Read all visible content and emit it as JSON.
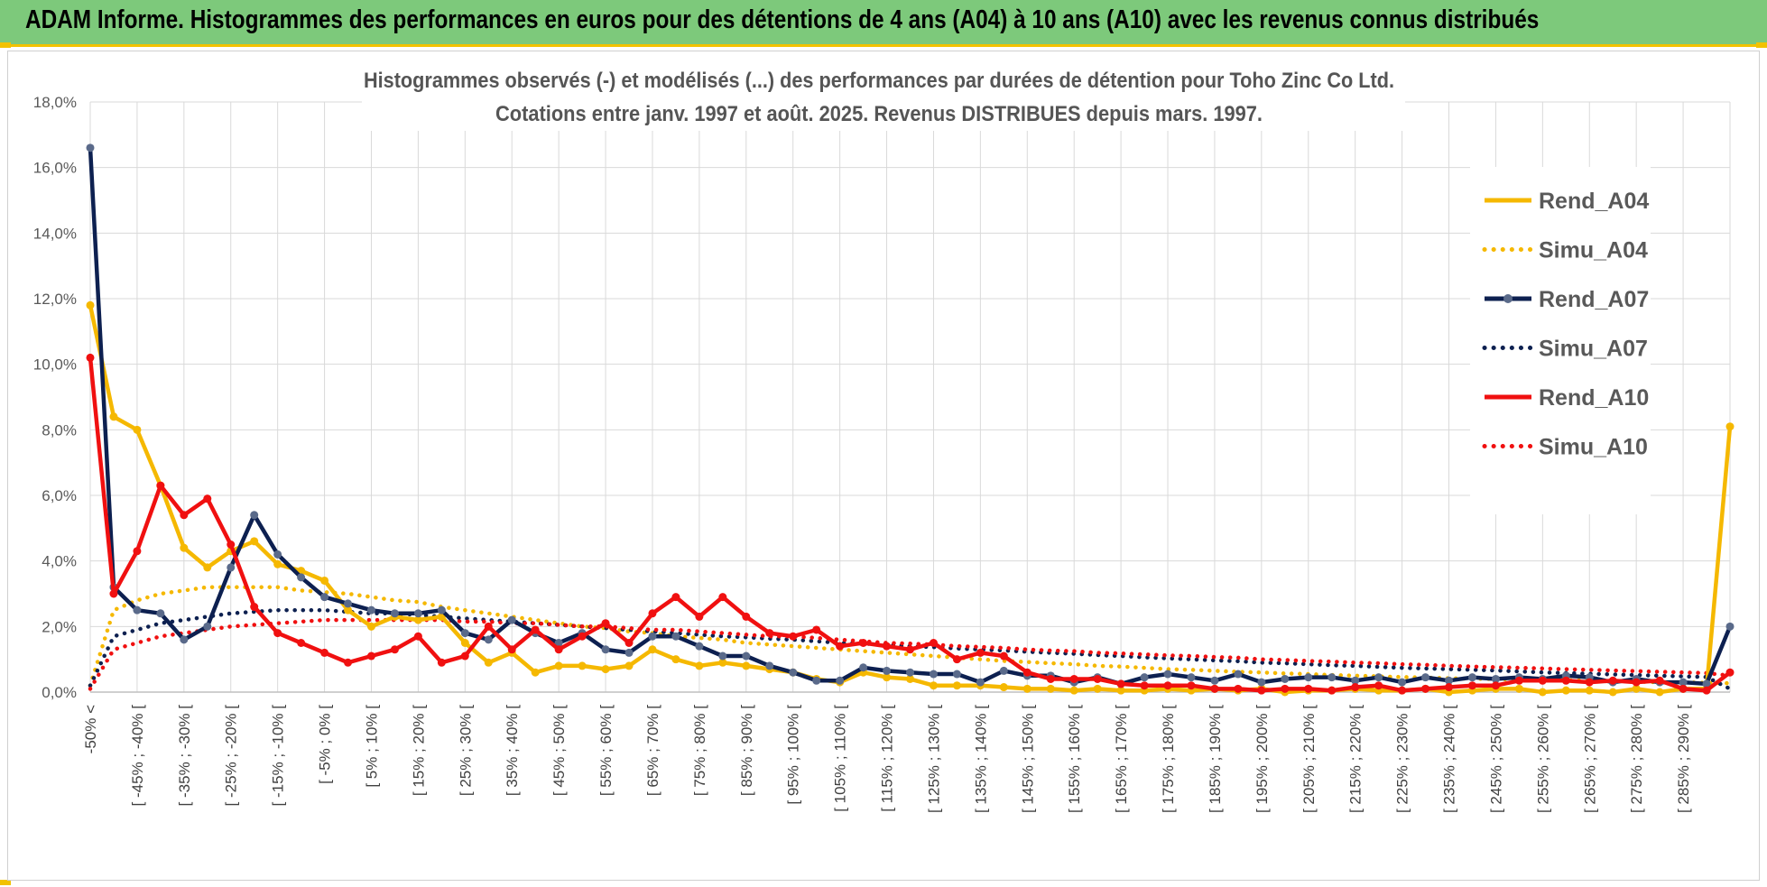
{
  "header": {
    "title": "ADAM Informe. Histogrammes des performances en euros pour des détentions de 4 ans (A04) à 10 ans (A10) avec les revenus connus distribués"
  },
  "chart_data": {
    "type": "line",
    "title": "Histogrammes observés (-) et modélisés (...) des performances par durées de détention pour Toho Zinc Co Ltd.",
    "subtitle": "Cotations entre janv. 1997 et août. 2025. Revenus DISTRIBUES depuis mars. 1997.",
    "xlabel": "",
    "ylabel": "",
    "ylim": [
      0,
      18
    ],
    "yticks": [
      0,
      2,
      4,
      6,
      8,
      10,
      12,
      14,
      16,
      18
    ],
    "ytick_labels": [
      "0,0%",
      "2,0%",
      "4,0%",
      "6,0%",
      "8,0%",
      "10,0%",
      "12,0%",
      "14,0%",
      "16,0%",
      "18,0%"
    ],
    "grid": true,
    "legend_position": "top-right",
    "categories": [
      "-50% <",
      "[ -50% ; -45% [",
      "[ -45% ; -40% [",
      "[ -40% ; -35% [",
      "[ -35% ; -30% [",
      "[ -30% ; -25% [",
      "[ -25% ; -20% [",
      "[ -20% ; -15% [",
      "[ -15% ; -10% [",
      "[ -10% ; -5% [",
      "[ -5% ; 0% [",
      "[ 0% ; 5% [",
      "[ 5% ; 10% [",
      "[ 10% ; 15% [",
      "[ 15% ; 20% [",
      "[ 20% ; 25% [",
      "[ 25% ; 30% [",
      "[ 30% ; 35% [",
      "[ 35% ; 40% [",
      "[ 40% ; 45% [",
      "[ 45% ; 50% [",
      "[ 50% ; 55% [",
      "[ 55% ; 60% [",
      "[ 60% ; 65% [",
      "[ 65% ; 70% [",
      "[ 70% ; 75% [",
      "[ 75% ; 80% [",
      "[ 80% ; 85% [",
      "[ 85% ; 90% [",
      "[ 90% ; 95% [",
      "[ 95% ; 100% [",
      "[ 100% ; 105% [",
      "[ 105% ; 110% [",
      "[ 110% ; 115% [",
      "[ 115% ; 120% [",
      "[ 120% ; 125% [",
      "[ 125% ; 130% [",
      "[ 130% ; 135% [",
      "[ 135% ; 140% [",
      "[ 140% ; 145% [",
      "[ 145% ; 150% [",
      "[ 150% ; 155% [",
      "[ 155% ; 160% [",
      "[ 160% ; 165% [",
      "[ 165% ; 170% [",
      "[ 170% ; 175% [",
      "[ 175% ; 180% [",
      "[ 180% ; 185% [",
      "[ 185% ; 190% [",
      "[ 190% ; 195% [",
      "[ 195% ; 200% [",
      "[ 200% ; 205% [",
      "[ 205% ; 210% [",
      "[ 210% ; 215% [",
      "[ 215% ; 220% [",
      "[ 220% ; 225% [",
      "[ 225% ; 230% [",
      "[ 230% ; 235% [",
      "[ 235% ; 240% [",
      "[ 240% ; 245% [",
      "[ 245% ; 250% [",
      "[ 250% ; 255% [",
      "[ 255% ; 260% [",
      "[ 260% ; 265% [",
      "[ 265% ; 270% [",
      "[ 270% ; 275% [",
      "[ 275% ; 280% [",
      "[ 280% ; 285% [",
      "[ 285% ; 290% [",
      "[ 290% ; 295% [",
      "[ 295% ; 300% ["
    ],
    "category_labels_shown": [
      "-50% <",
      "[ -45% ; -40% [",
      "[ -35% ; -30% [",
      "[ -25% ; -20% [",
      "[ -15% ; -10% [",
      "[ -5% ; 0% [",
      "[ 5% ; 10% [",
      "[ 15% ; 20% [",
      "[ 25% ; 30% [",
      "[ 35% ; 40% [",
      "[ 45% ; 50% [",
      "[ 55% ; 60% [",
      "[ 65% ; 70% [",
      "[ 75% ; 80% [",
      "[ 85% ; 90% [",
      "[ 95% ; 100% [",
      "[ 105% ; 110% [",
      "[ 115% ; 120% [",
      "[ 125% ; 130% [",
      "[ 135% ; 140% [",
      "[ 145% ; 150% [",
      "[ 155% ; 160% [",
      "[ 165% ; 170% [",
      "[ 175% ; 180% [",
      "[ 185% ; 190% [",
      "[ 195% ; 200% [",
      "[ 205% ; 210% [",
      "[ 215% ; 220% [",
      "[ 225% ; 230% [",
      "[ 235% ; 240% [",
      "[ 245% ; 250% [",
      "[ 255% ; 260% [",
      "[ 265% ; 270% [",
      "[ 275% ; 280% [",
      "[ 285% ; 290% ["
    ],
    "series": [
      {
        "name": "Rend_A04",
        "style": "solid",
        "color": "#f5b800",
        "values": [
          11.8,
          8.4,
          8.0,
          6.3,
          4.4,
          3.8,
          4.3,
          4.6,
          3.9,
          3.7,
          3.4,
          2.5,
          2.0,
          2.3,
          2.2,
          2.3,
          1.5,
          0.9,
          1.2,
          0.6,
          0.8,
          0.8,
          0.7,
          0.8,
          1.3,
          1.0,
          0.8,
          0.9,
          0.8,
          0.7,
          0.6,
          0.4,
          0.3,
          0.6,
          0.45,
          0.4,
          0.2,
          0.2,
          0.2,
          0.15,
          0.1,
          0.1,
          0.05,
          0.1,
          0.05,
          0.05,
          0.1,
          0.05,
          0.1,
          0.05,
          0.1,
          0.0,
          0.05,
          0.05,
          0.1,
          0.05,
          0.05,
          0.1,
          0.0,
          0.05,
          0.1,
          0.1,
          0.0,
          0.05,
          0.05,
          0.0,
          0.1,
          0.0,
          0.1,
          0.1,
          8.1
        ]
      },
      {
        "name": "Simu_A04",
        "style": "dotted",
        "color": "#f5b800",
        "values": [
          0.2,
          2.5,
          2.8,
          3.0,
          3.1,
          3.2,
          3.2,
          3.2,
          3.2,
          3.1,
          3.05,
          3.0,
          2.9,
          2.8,
          2.75,
          2.6,
          2.5,
          2.4,
          2.3,
          2.2,
          2.1,
          2.0,
          1.95,
          1.85,
          1.8,
          1.7,
          1.65,
          1.6,
          1.5,
          1.45,
          1.4,
          1.35,
          1.3,
          1.25,
          1.2,
          1.15,
          1.1,
          1.05,
          1.0,
          0.95,
          0.92,
          0.88,
          0.85,
          0.8,
          0.78,
          0.74,
          0.7,
          0.68,
          0.65,
          0.62,
          0.6,
          0.57,
          0.55,
          0.52,
          0.5,
          0.48,
          0.46,
          0.44,
          0.42,
          0.41,
          0.4,
          0.38,
          0.37,
          0.36,
          0.35,
          0.34,
          0.32,
          0.3,
          0.3,
          0.28,
          0.27
        ]
      },
      {
        "name": "Rend_A07",
        "style": "solid",
        "color": "#0d2050",
        "values": [
          16.6,
          3.2,
          2.5,
          2.4,
          1.6,
          2.0,
          3.8,
          5.4,
          4.2,
          3.5,
          2.9,
          2.7,
          2.5,
          2.4,
          2.4,
          2.5,
          1.8,
          1.6,
          2.2,
          1.8,
          1.5,
          1.8,
          1.3,
          1.2,
          1.7,
          1.7,
          1.4,
          1.1,
          1.1,
          0.8,
          0.6,
          0.35,
          0.35,
          0.75,
          0.65,
          0.6,
          0.55,
          0.55,
          0.3,
          0.65,
          0.5,
          0.5,
          0.3,
          0.45,
          0.25,
          0.45,
          0.55,
          0.45,
          0.35,
          0.55,
          0.3,
          0.4,
          0.45,
          0.45,
          0.35,
          0.45,
          0.3,
          0.45,
          0.35,
          0.45,
          0.4,
          0.45,
          0.4,
          0.5,
          0.45,
          0.3,
          0.4,
          0.3,
          0.3,
          0.25,
          2.0
        ]
      },
      {
        "name": "Simu_A07",
        "style": "dotted",
        "color": "#0d2050",
        "values": [
          0.2,
          1.7,
          1.9,
          2.1,
          2.2,
          2.3,
          2.4,
          2.45,
          2.5,
          2.5,
          2.5,
          2.45,
          2.4,
          2.4,
          2.35,
          2.3,
          2.25,
          2.2,
          2.15,
          2.1,
          2.05,
          2.0,
          1.95,
          1.9,
          1.85,
          1.8,
          1.75,
          1.7,
          1.67,
          1.63,
          1.6,
          1.55,
          1.5,
          1.48,
          1.45,
          1.4,
          1.37,
          1.33,
          1.3,
          1.27,
          1.23,
          1.2,
          1.17,
          1.13,
          1.1,
          1.06,
          1.03,
          1.0,
          0.97,
          0.94,
          0.9,
          0.88,
          0.85,
          0.82,
          0.8,
          0.77,
          0.74,
          0.72,
          0.7,
          0.68,
          0.66,
          0.63,
          0.6,
          0.58,
          0.56,
          0.54,
          0.52,
          0.5,
          0.48,
          0.46,
          0.1
        ]
      },
      {
        "name": "Rend_A10",
        "style": "solid",
        "color": "#f01010",
        "values": [
          10.2,
          3.0,
          4.3,
          6.3,
          5.4,
          5.9,
          4.5,
          2.6,
          1.8,
          1.5,
          1.2,
          0.9,
          1.1,
          1.3,
          1.7,
          0.9,
          1.1,
          2.0,
          1.3,
          1.9,
          1.3,
          1.7,
          2.1,
          1.5,
          2.4,
          2.9,
          2.3,
          2.9,
          2.3,
          1.8,
          1.7,
          1.9,
          1.4,
          1.5,
          1.4,
          1.3,
          1.5,
          1.0,
          1.2,
          1.1,
          0.6,
          0.4,
          0.4,
          0.4,
          0.25,
          0.2,
          0.2,
          0.2,
          0.1,
          0.1,
          0.05,
          0.1,
          0.1,
          0.05,
          0.15,
          0.2,
          0.05,
          0.1,
          0.15,
          0.2,
          0.2,
          0.35,
          0.35,
          0.35,
          0.3,
          0.35,
          0.3,
          0.35,
          0.1,
          0.05,
          0.6
        ]
      },
      {
        "name": "Simu_A10",
        "style": "dotted",
        "color": "#f01010",
        "values": [
          0.1,
          1.3,
          1.5,
          1.7,
          1.8,
          1.9,
          2.0,
          2.05,
          2.1,
          2.15,
          2.2,
          2.2,
          2.2,
          2.2,
          2.2,
          2.2,
          2.15,
          2.15,
          2.1,
          2.1,
          2.05,
          2.0,
          2.0,
          1.95,
          1.9,
          1.9,
          1.85,
          1.8,
          1.75,
          1.7,
          1.7,
          1.65,
          1.6,
          1.55,
          1.5,
          1.48,
          1.45,
          1.4,
          1.38,
          1.35,
          1.3,
          1.27,
          1.25,
          1.2,
          1.18,
          1.15,
          1.12,
          1.1,
          1.07,
          1.05,
          1.0,
          0.98,
          0.95,
          0.93,
          0.9,
          0.88,
          0.85,
          0.83,
          0.8,
          0.78,
          0.76,
          0.74,
          0.72,
          0.7,
          0.68,
          0.66,
          0.64,
          0.62,
          0.6,
          0.58,
          0.5
        ]
      }
    ]
  }
}
